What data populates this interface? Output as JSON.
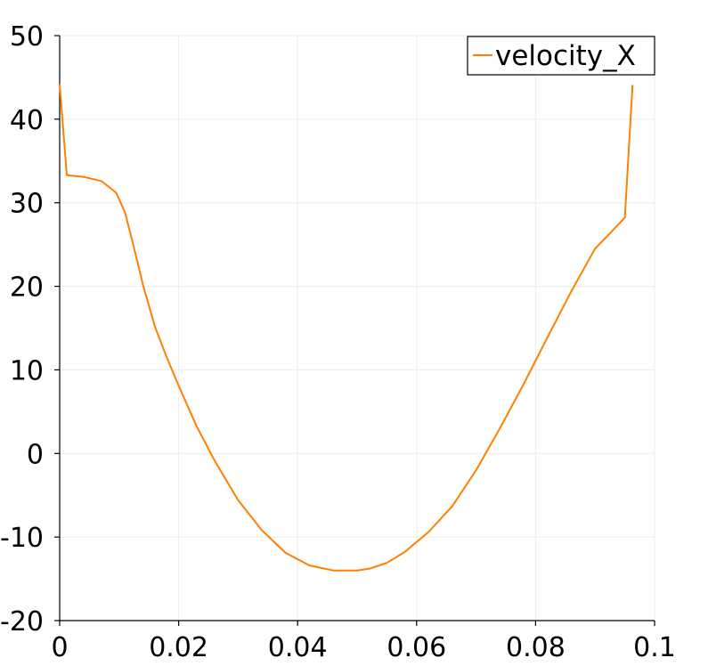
{
  "chart_data": {
    "type": "line",
    "title": "",
    "xlabel": "",
    "ylabel": "",
    "xlim": [
      0,
      0.1
    ],
    "ylim": [
      -20,
      50
    ],
    "x_ticks": [
      0,
      0.02,
      0.04,
      0.06,
      0.08,
      0.1
    ],
    "x_tick_labels": [
      "0",
      "0.02",
      "0.04",
      "0.06",
      "0.08",
      "0.1"
    ],
    "y_ticks": [
      -20,
      -10,
      0,
      10,
      20,
      30,
      40,
      50
    ],
    "y_tick_labels": [
      "-20",
      "-10",
      "0",
      "10",
      "20",
      "30",
      "40",
      "50"
    ],
    "grid": true,
    "legend_position": "top-right",
    "series": [
      {
        "name": "velocity_X",
        "color": "#ff8000",
        "x": [
          0,
          0.0012,
          0.004,
          0.007,
          0.0095,
          0.011,
          0.0125,
          0.014,
          0.016,
          0.018,
          0.02,
          0.023,
          0.026,
          0.03,
          0.034,
          0.038,
          0.042,
          0.046,
          0.05,
          0.052,
          0.055,
          0.058,
          0.062,
          0.066,
          0.07,
          0.074,
          0.078,
          0.082,
          0.086,
          0.09,
          0.095,
          0.0963
        ],
        "y": [
          44.2,
          33.3,
          33.1,
          32.6,
          31.2,
          28.8,
          24.6,
          20.2,
          15.2,
          11.5,
          8.1,
          3.3,
          -0.8,
          -5.6,
          -9.2,
          -11.9,
          -13.4,
          -14.0,
          -14.0,
          -13.8,
          -13.1,
          -11.8,
          -9.4,
          -6.3,
          -2.0,
          3.0,
          8.3,
          13.9,
          19.4,
          24.5,
          28.2,
          44.1
        ]
      }
    ]
  }
}
